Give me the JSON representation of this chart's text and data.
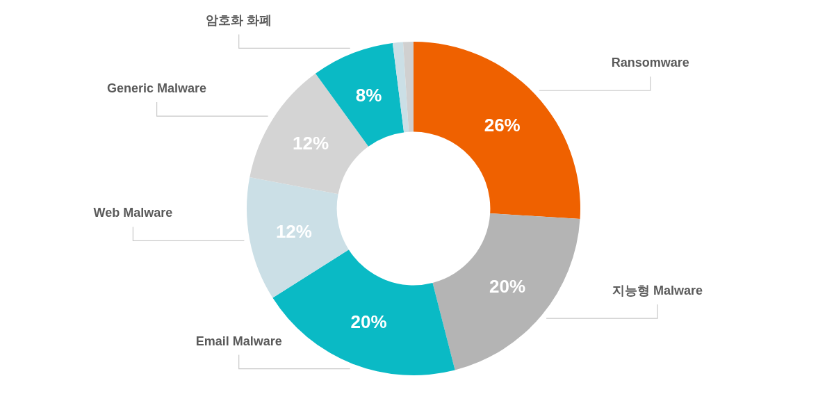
{
  "chart_data": {
    "type": "donut",
    "categories": [
      "Ransomware",
      "지능형 Malware",
      "Email Malware",
      "Web Malware",
      "Generic Malware",
      "암호화 화폐",
      null,
      null
    ],
    "values": [
      26,
      20,
      20,
      12,
      12,
      8,
      1,
      1
    ],
    "value_labels": [
      "26%",
      "20%",
      "20%",
      "12%",
      "12%",
      "8%",
      null,
      null
    ],
    "colors": [
      "#ef6100",
      "#b4b4b4",
      "#0abac5",
      "#cbdfe6",
      "#d4d4d4",
      "#0abac5",
      "#cbdfe6",
      "#d0d0d0"
    ]
  }
}
